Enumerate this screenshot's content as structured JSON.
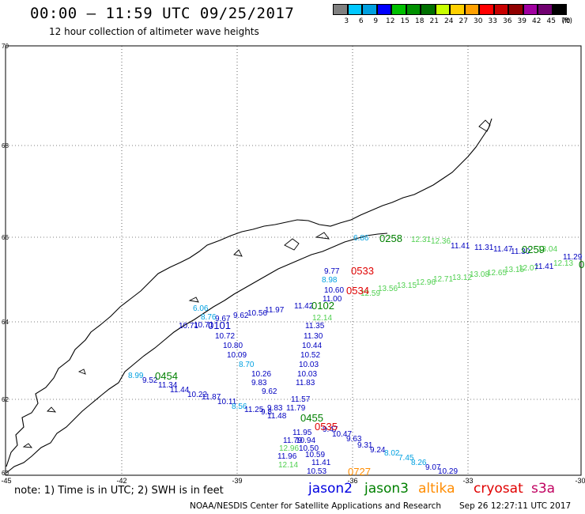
{
  "header": {
    "title": "00:00 – 11:59 UTC 09/25/2017",
    "subtitle": "12 hour collection of altimeter wave heights"
  },
  "scale": {
    "labels": [
      "3",
      "6",
      "9",
      "12",
      "15",
      "18",
      "21",
      "24",
      "27",
      "30",
      "33",
      "36",
      "39",
      "42",
      "45",
      "70"
    ],
    "unit": "(ft)",
    "colors": [
      "#808080",
      "#00c8ff",
      "#00a0e0",
      "#0000ff",
      "#00c000",
      "#009000",
      "#007000",
      "#c8ff00",
      "#ffd000",
      "#ffa000",
      "#ff0000",
      "#c80000",
      "#900000",
      "#a000a0",
      "#700070",
      "#000000"
    ]
  },
  "axes": {
    "lat_labels": [
      "70",
      "68",
      "66",
      "64",
      "62",
      "60"
    ],
    "lon_labels": [
      "-45",
      "-42",
      "-39",
      "-36",
      "-33",
      "-30"
    ]
  },
  "pass_times": [
    {
      "text": "0533",
      "color": "#e00000"
    },
    {
      "text": "0534",
      "color": "#e00000"
    },
    {
      "text": "0102",
      "color": "#008000"
    },
    {
      "text": "0101",
      "color": "#0000c0"
    },
    {
      "text": "0454",
      "color": "#008000"
    },
    {
      "text": "0455",
      "color": "#008000"
    },
    {
      "text": "0535",
      "color": "#e00000"
    },
    {
      "text": "0727",
      "color": "#ff8c00"
    },
    {
      "text": "0259",
      "color": "#008000"
    },
    {
      "text": "0258",
      "color": "#008000"
    },
    {
      "text": "0",
      "color": "#008000"
    }
  ],
  "wave_heights": [
    {
      "text": "9.77",
      "color": "#0000c0"
    },
    {
      "text": "8.98",
      "color": "#00a0e0"
    },
    {
      "text": "10.60",
      "color": "#0000c0"
    },
    {
      "text": "11.00",
      "color": "#0000c0"
    },
    {
      "text": "11.42",
      "color": "#0000c0"
    },
    {
      "text": "11.97",
      "color": "#0000c0"
    },
    {
      "text": "10.56",
      "color": "#0000c0"
    },
    {
      "text": "9.62",
      "color": "#0000c0"
    },
    {
      "text": "9.67",
      "color": "#0000c0"
    },
    {
      "text": "8.76",
      "color": "#00a0e0"
    },
    {
      "text": "6.06",
      "color": "#00a0e0"
    },
    {
      "text": "10.71",
      "color": "#0000c0"
    },
    {
      "text": "10.72",
      "color": "#0000c0"
    },
    {
      "text": "10.80",
      "color": "#0000c0"
    },
    {
      "text": "10.09",
      "color": "#0000c0"
    },
    {
      "text": "8.70",
      "color": "#00a0e0"
    },
    {
      "text": "10.26",
      "color": "#0000c0"
    },
    {
      "text": "9.83",
      "color": "#0000c0"
    },
    {
      "text": "9.62",
      "color": "#0000c0"
    },
    {
      "text": "9.83",
      "color": "#0000c0"
    },
    {
      "text": "11.48",
      "color": "#0000c0"
    },
    {
      "text": "8.99",
      "color": "#00a0e0"
    },
    {
      "text": "9.52",
      "color": "#0000c0"
    },
    {
      "text": "11.34",
      "color": "#0000c0"
    },
    {
      "text": "11.44",
      "color": "#0000c0"
    },
    {
      "text": "10.22",
      "color": "#0000c0"
    },
    {
      "text": "11.87",
      "color": "#0000c0"
    },
    {
      "text": "10.11",
      "color": "#0000c0"
    },
    {
      "text": "8.56",
      "color": "#00a0e0"
    },
    {
      "text": "11.25",
      "color": "#0000c0"
    },
    {
      "text": "9.8",
      "color": "#0000c0"
    },
    {
      "text": "12.14",
      "color": "#50d050"
    },
    {
      "text": "11.35",
      "color": "#0000c0"
    },
    {
      "text": "11.30",
      "color": "#0000c0"
    },
    {
      "text": "10.44",
      "color": "#0000c0"
    },
    {
      "text": "10.52",
      "color": "#0000c0"
    },
    {
      "text": "10.03",
      "color": "#0000c0"
    },
    {
      "text": "10.03",
      "color": "#0000c0"
    },
    {
      "text": "11.83",
      "color": "#0000c0"
    },
    {
      "text": "11.57",
      "color": "#0000c0"
    },
    {
      "text": "11.79",
      "color": "#0000c0"
    },
    {
      "text": "9.47",
      "color": "#0000c0"
    },
    {
      "text": "10.47",
      "color": "#0000c0"
    },
    {
      "text": "11.95",
      "color": "#0000c0"
    },
    {
      "text": "10.94",
      "color": "#0000c0"
    },
    {
      "text": "10.50",
      "color": "#0000c0"
    },
    {
      "text": "11.79",
      "color": "#0000c0"
    },
    {
      "text": "12.96",
      "color": "#50d050"
    },
    {
      "text": "11.96",
      "color": "#0000c0"
    },
    {
      "text": "10.59",
      "color": "#0000c0"
    },
    {
      "text": "12.14",
      "color": "#50d050"
    },
    {
      "text": "11.41",
      "color": "#0000c0"
    },
    {
      "text": "10.53",
      "color": "#0000c0"
    },
    {
      "text": "9.63",
      "color": "#0000c0"
    },
    {
      "text": "9.31",
      "color": "#0000c0"
    },
    {
      "text": "9.24",
      "color": "#0000c0"
    },
    {
      "text": "8.02",
      "color": "#00a0e0"
    },
    {
      "text": "7.45",
      "color": "#00a0e0"
    },
    {
      "text": "8.26",
      "color": "#00a0e0"
    },
    {
      "text": "9.07",
      "color": "#0000c0"
    },
    {
      "text": "10.29",
      "color": "#0000c0"
    },
    {
      "text": "12.59",
      "color": "#50d050"
    },
    {
      "text": "13.56",
      "color": "#50d050"
    },
    {
      "text": "13.15",
      "color": "#50d050"
    },
    {
      "text": "12.96",
      "color": "#50d050"
    },
    {
      "text": "12.71",
      "color": "#50d050"
    },
    {
      "text": "13.12",
      "color": "#50d050"
    },
    {
      "text": "13.08",
      "color": "#50d050"
    },
    {
      "text": "12.65",
      "color": "#50d050"
    },
    {
      "text": "13.15",
      "color": "#50d050"
    },
    {
      "text": "12.07",
      "color": "#50d050"
    },
    {
      "text": "11.41",
      "color": "#0000c0"
    },
    {
      "text": "12.13",
      "color": "#50d050"
    },
    {
      "text": "11.29",
      "color": "#0000c0"
    },
    {
      "text": "11.41",
      "color": "#0000c0"
    },
    {
      "text": "11.31",
      "color": "#0000c0"
    },
    {
      "text": "11.47",
      "color": "#0000c0"
    },
    {
      "text": "11.30",
      "color": "#0000c0"
    },
    {
      "text": "12.31",
      "color": "#50d050"
    },
    {
      "text": "12.36",
      "color": "#50d050"
    },
    {
      "text": "13.04",
      "color": "#50d050"
    },
    {
      "text": "6.86",
      "color": "#00a0e0"
    },
    {
      "text": "10.71",
      "color": "#0000c0"
    }
  ],
  "footer": {
    "note": "note:  1) Time is in UTC; 2) SWH is in feet",
    "credit": "NOAA/NESDIS Center for Satellite Applications and Research",
    "timestamp": "Sep 26 12:27:11 UTC 2017"
  },
  "legend": [
    {
      "text": "jason2",
      "color": "#0000e0"
    },
    {
      "text": "jason3",
      "color": "#008000"
    },
    {
      "text": "altika",
      "color": "#ff8c00"
    },
    {
      "text": "cryosat",
      "color": "#e00000"
    },
    {
      "text": "s3a",
      "color": "#c00060"
    }
  ]
}
